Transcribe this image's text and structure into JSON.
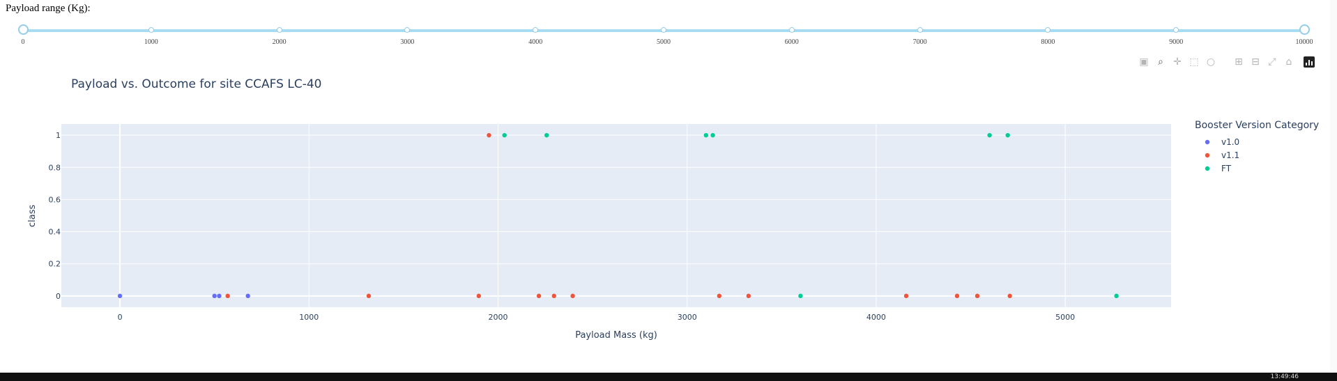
{
  "filter": {
    "label": "Payload range (Kg):",
    "min": 0,
    "max": 10000,
    "selected": [
      0,
      10000
    ],
    "marks": [
      "0",
      "1000",
      "2000",
      "3000",
      "4000",
      "5000",
      "6000",
      "7000",
      "8000",
      "9000",
      "10000"
    ]
  },
  "modebar": {
    "icons": [
      "camera-icon",
      "zoom-icon",
      "pan-icon",
      "box-select-icon",
      "lasso-icon",
      "zoom-in-icon",
      "zoom-out-icon",
      "autoscale-icon",
      "reset-axes-icon",
      "plotly-logo-icon"
    ]
  },
  "chart_data": {
    "type": "scatter",
    "title": "Payload vs. Outcome for site CCAFS LC-40",
    "xlabel": "Payload Mass (kg)",
    "ylabel": "class",
    "xlim": [
      -310,
      5560
    ],
    "ylim": [
      -0.07,
      1.07
    ],
    "xticks": [
      0,
      1000,
      2000,
      3000,
      4000,
      5000
    ],
    "yticks": [
      0,
      0.2,
      0.4,
      0.6,
      0.8,
      1
    ],
    "ytick_labels": [
      "0",
      "0.2",
      "0.4",
      "0.6",
      "0.8",
      "1"
    ],
    "grid": true,
    "legend": {
      "title": "Booster Version Category",
      "placement": "right"
    },
    "series": [
      {
        "name": "v1.0",
        "color": "#636efa",
        "points": [
          [
            0,
            0
          ],
          [
            500,
            0
          ],
          [
            525,
            0
          ],
          [
            677,
            0
          ]
        ]
      },
      {
        "name": "v1.1",
        "color": "#ef553b",
        "points": [
          [
            570,
            0
          ],
          [
            1316,
            0
          ],
          [
            1898,
            0
          ],
          [
            1952,
            1
          ],
          [
            2216,
            0
          ],
          [
            2296,
            0
          ],
          [
            2395,
            0
          ],
          [
            3170,
            0
          ],
          [
            3325,
            0
          ],
          [
            4159,
            0
          ],
          [
            4428,
            0
          ],
          [
            4535,
            0
          ],
          [
            4707,
            0
          ]
        ]
      },
      {
        "name": "FT",
        "color": "#00cc96",
        "points": [
          [
            2034,
            1
          ],
          [
            2257,
            1
          ],
          [
            3100,
            1
          ],
          [
            3136,
            1
          ],
          [
            3600,
            0
          ],
          [
            4600,
            1
          ],
          [
            4696,
            1
          ],
          [
            5271,
            0
          ]
        ]
      }
    ]
  },
  "system": {
    "clock": "13:49:46"
  }
}
